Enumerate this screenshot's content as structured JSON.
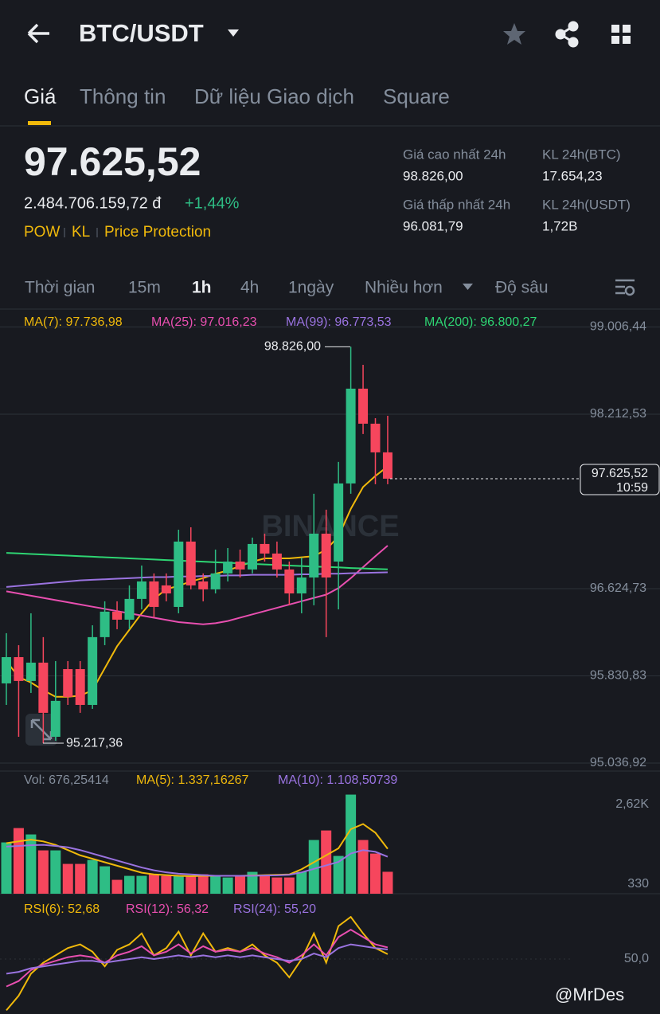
{
  "header": {
    "title": "BTC/USDT"
  },
  "tabs": [
    "Giá",
    "Thông tin",
    "Dữ liệu Giao dịch",
    "Square"
  ],
  "price": {
    "last": "97.625,52",
    "fiat": "2.484.706.159,72 đ",
    "change": "+1,44%",
    "tags": [
      "POW",
      "KL",
      "Price Protection"
    ]
  },
  "stats": [
    {
      "label": "Giá cao nhất 24h",
      "value": "98.826,00"
    },
    {
      "label": "KL 24h(BTC)",
      "value": "17.654,23"
    },
    {
      "label": "Giá thấp nhất 24h",
      "value": "96.081,79"
    },
    {
      "label": "KL 24h(USDT)",
      "value": "1,72B"
    }
  ],
  "intervals": [
    "Thời gian",
    "15m",
    "1h",
    "4h",
    "1ngày",
    "Nhiều hơn",
    "Độ sâu"
  ],
  "chart_data": {
    "type": "candlestick",
    "watermark": "BINANCE",
    "ylim": [
      94964,
      99155
    ],
    "yticks": [
      {
        "value": 99006.44,
        "label": "99.006,44"
      },
      {
        "value": 98212.53,
        "label": "98.212,53"
      },
      {
        "value": 96624.73,
        "label": "96.624,73"
      },
      {
        "value": 95830.83,
        "label": "95.830,83"
      },
      {
        "value": 95036.92,
        "label": "95.036,92"
      }
    ],
    "high_label": {
      "value": 98826,
      "label": "98.826,00"
    },
    "low_label": {
      "value": 95217.36,
      "label": "95.217,36"
    },
    "last_price": {
      "value": 97625.52,
      "label": "97.625,52",
      "countdown": "10:59"
    },
    "candles": {
      "open": [
        95762,
        96001,
        95784,
        95951,
        95276,
        95892,
        95892,
        95566,
        96183,
        96415,
        96342,
        96531,
        96690,
        96654,
        96458,
        97053,
        96690,
        96618,
        96763,
        96871,
        96799,
        97031,
        96944,
        96799,
        96581,
        96726,
        97125,
        96871,
        97582,
        98445,
        98126,
        97865
      ],
      "close": [
        96001,
        95784,
        95951,
        95494,
        95603,
        95639,
        95566,
        96183,
        96415,
        96342,
        96531,
        96690,
        96458,
        96581,
        97053,
        96654,
        96618,
        96763,
        96871,
        96799,
        97031,
        96944,
        96799,
        96581,
        96726,
        97125,
        96726,
        97582,
        98445,
        98126,
        97865,
        97625.52
      ],
      "high": [
        96219,
        96110,
        96400,
        96183,
        95965,
        95965,
        95965,
        96291,
        96509,
        96509,
        96654,
        96835,
        96763,
        96763,
        97161,
        97183,
        96763,
        96980,
        96994,
        96980,
        97089,
        97125,
        97053,
        96871,
        96907,
        97488,
        97343,
        97778,
        98826,
        98662,
        98176,
        98198
      ],
      "low": [
        95566,
        95276,
        95675,
        95217.36,
        95240,
        95566,
        95494,
        95530,
        96110,
        96255,
        96255,
        96436,
        96364,
        96509,
        96400,
        96618,
        96509,
        96581,
        96690,
        96726,
        96763,
        96871,
        96726,
        96473,
        96400,
        96473,
        96183,
        96436,
        97488,
        98032,
        97575,
        97575
      ]
    },
    "series": [
      {
        "name": "MA(7): 97.736,98",
        "color": "#f0b90b",
        "values": [
          95965,
          95820,
          95770,
          95700,
          95640,
          95640,
          95650,
          95700,
          95900,
          96100,
          96250,
          96400,
          96530,
          96620,
          96650,
          96690,
          96720,
          96760,
          96790,
          96830,
          96870,
          96900,
          96900,
          96900,
          96910,
          96920,
          96980,
          97100,
          97350,
          97550,
          97650,
          97736.98
        ]
      },
      {
        "name": "MA(25): 97.016,23",
        "color": "#e84fb0",
        "values": [
          96600,
          96580,
          96560,
          96540,
          96520,
          96500,
          96480,
          96460,
          96440,
          96420,
          96400,
          96380,
          96360,
          96340,
          96320,
          96310,
          96300,
          96310,
          96330,
          96360,
          96390,
          96420,
          96450,
          96480,
          96510,
          96540,
          96570,
          96630,
          96720,
          96820,
          96920,
          97016.23
        ]
      },
      {
        "name": "MA(99): 96.773,53",
        "color": "#9a73e0",
        "values": [
          96640,
          96650,
          96660,
          96670,
          96680,
          96690,
          96700,
          96705,
          96710,
          96715,
          96720,
          96725,
          96730,
          96730,
          96735,
          96735,
          96740,
          96740,
          96745,
          96745,
          96750,
          96750,
          96750,
          96750,
          96755,
          96755,
          96760,
          96760,
          96765,
          96768,
          96770,
          96773.53
        ]
      },
      {
        "name": "MA(200): 96.800,27",
        "color": "#2ed573",
        "values": [
          96950,
          96945,
          96940,
          96935,
          96930,
          96925,
          96920,
          96915,
          96910,
          96905,
          96900,
          96895,
          96890,
          96885,
          96880,
          96875,
          96870,
          96865,
          96860,
          96855,
          96850,
          96845,
          96840,
          96835,
          96830,
          96826,
          96822,
          96818,
          96812,
          96808,
          96804,
          96800.27
        ]
      }
    ],
    "volume": {
      "label": "Vol: 676,25414",
      "ylim": [
        0,
        3068
      ],
      "yticks": [
        {
          "value": 2620,
          "label": "2,62K"
        },
        330
      ],
      "values": [
        1521,
        1933,
        1750,
        1292,
        1292,
        903,
        903,
        1017,
        834,
        445,
        559,
        559,
        605,
        559,
        559,
        559,
        605,
        559,
        513,
        559,
        674,
        559,
        513,
        513,
        674,
        1590,
        1864,
        1132,
        2895,
        1590,
        1200,
        676.25414
      ],
      "series": [
        {
          "name": "MA(5): 1.337,16267",
          "color": "#f0b90b",
          "values": [
            1500,
            1550,
            1600,
            1550,
            1450,
            1300,
            1150,
            1050,
            950,
            850,
            750,
            650,
            600,
            580,
            560,
            550,
            560,
            560,
            560,
            560,
            570,
            580,
            590,
            600,
            750,
            950,
            1150,
            1350,
            1900,
            2050,
            1800,
            1337.16267
          ]
        },
        {
          "name": "MA(10): 1.108,50739",
          "color": "#9a73e0",
          "values": [
            1400,
            1420,
            1440,
            1450,
            1420,
            1380,
            1300,
            1200,
            1100,
            1000,
            900,
            800,
            720,
            660,
            620,
            600,
            580,
            560,
            560,
            560,
            560,
            570,
            575,
            590,
            660,
            760,
            860,
            960,
            1200,
            1300,
            1250,
            1108.50739
          ]
        }
      ]
    },
    "rsi": {
      "ylim": [
        20,
        80
      ],
      "yticks": [
        {
          "value": 50,
          "label": "50,0"
        }
      ],
      "series": [
        {
          "name": "RSI(6): 52,68",
          "color": "#f0b90b",
          "values": [
            22,
            30,
            42,
            48,
            52,
            56,
            58,
            54,
            46,
            55,
            58,
            64,
            52,
            56,
            65,
            52,
            64,
            54,
            56,
            54,
            58,
            52,
            48,
            40,
            50,
            64,
            48,
            68,
            73,
            64,
            56,
            52.68
          ]
        },
        {
          "name": "RSI(12): 56,32",
          "color": "#e84fb0",
          "values": [
            35,
            38,
            44,
            47,
            49,
            51,
            52,
            51,
            48,
            52,
            54,
            57,
            52,
            54,
            58,
            53,
            57,
            54,
            55,
            54,
            56,
            53,
            51,
            48,
            52,
            58,
            52,
            62,
            66,
            62,
            58,
            56.32
          ]
        },
        {
          "name": "RSI(24): 55,20",
          "color": "#9a73e0",
          "values": [
            42,
            43,
            45,
            46,
            47,
            48,
            49,
            49,
            48,
            49,
            50,
            51,
            50,
            51,
            52,
            51,
            52,
            51,
            52,
            51,
            52,
            51,
            50,
            49,
            50,
            53,
            51,
            56,
            58,
            57,
            56,
            55.2
          ]
        }
      ]
    }
  },
  "credit": "@MrDes"
}
